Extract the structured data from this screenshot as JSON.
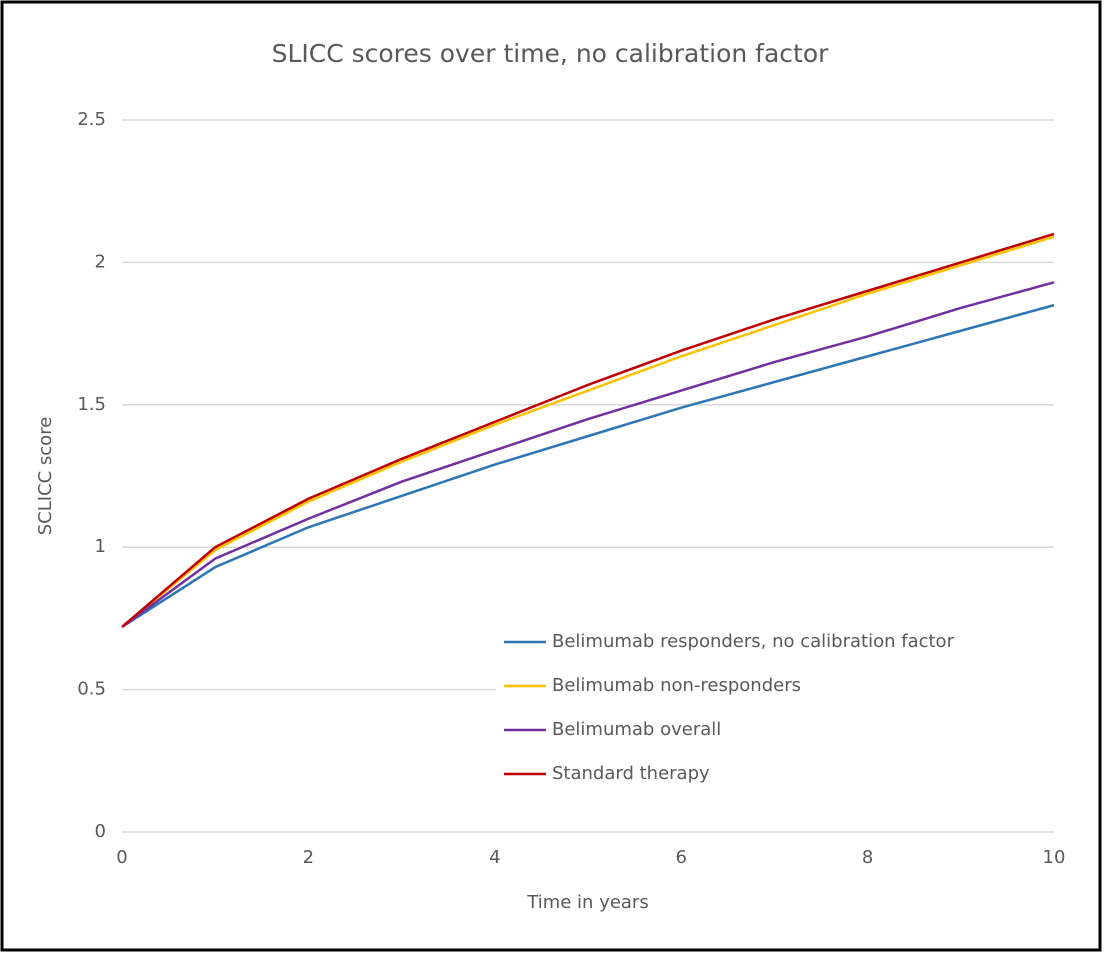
{
  "chart_data": {
    "type": "line",
    "title": "SLICC scores over time, no calibration factor",
    "x_label": "Time in years",
    "y_label": "SCLICC score",
    "x": [
      0,
      1,
      2,
      3,
      4,
      5,
      6,
      7,
      8,
      9,
      10
    ],
    "series": [
      {
        "name": "Belimumab responders, no calibration factor",
        "color": "#2e75b6",
        "values": [
          0.72,
          0.93,
          1.07,
          1.18,
          1.29,
          1.39,
          1.49,
          1.58,
          1.67,
          1.76,
          1.85
        ]
      },
      {
        "name": "Belimumab non-responders",
        "color": "#ffc000",
        "values": [
          0.72,
          0.99,
          1.16,
          1.3,
          1.43,
          1.55,
          1.67,
          1.78,
          1.89,
          1.99,
          2.09
        ]
      },
      {
        "name": "Belimumab overall",
        "color": "#7030a0",
        "values": [
          0.72,
          0.96,
          1.1,
          1.23,
          1.34,
          1.45,
          1.55,
          1.65,
          1.74,
          1.84,
          1.93
        ]
      },
      {
        "name": "Standard therapy",
        "color": "#c00000",
        "values": [
          0.72,
          1.0,
          1.17,
          1.31,
          1.44,
          1.57,
          1.69,
          1.8,
          1.9,
          2.0,
          2.1
        ]
      }
    ],
    "xlim": [
      0,
      10
    ],
    "xticks": [
      0,
      2,
      4,
      6,
      8,
      10
    ],
    "ylim": [
      0,
      2.5
    ],
    "yticks": [
      0,
      0.5,
      1,
      1.5,
      2,
      2.5
    ],
    "grid": true,
    "legend": "lower right"
  }
}
